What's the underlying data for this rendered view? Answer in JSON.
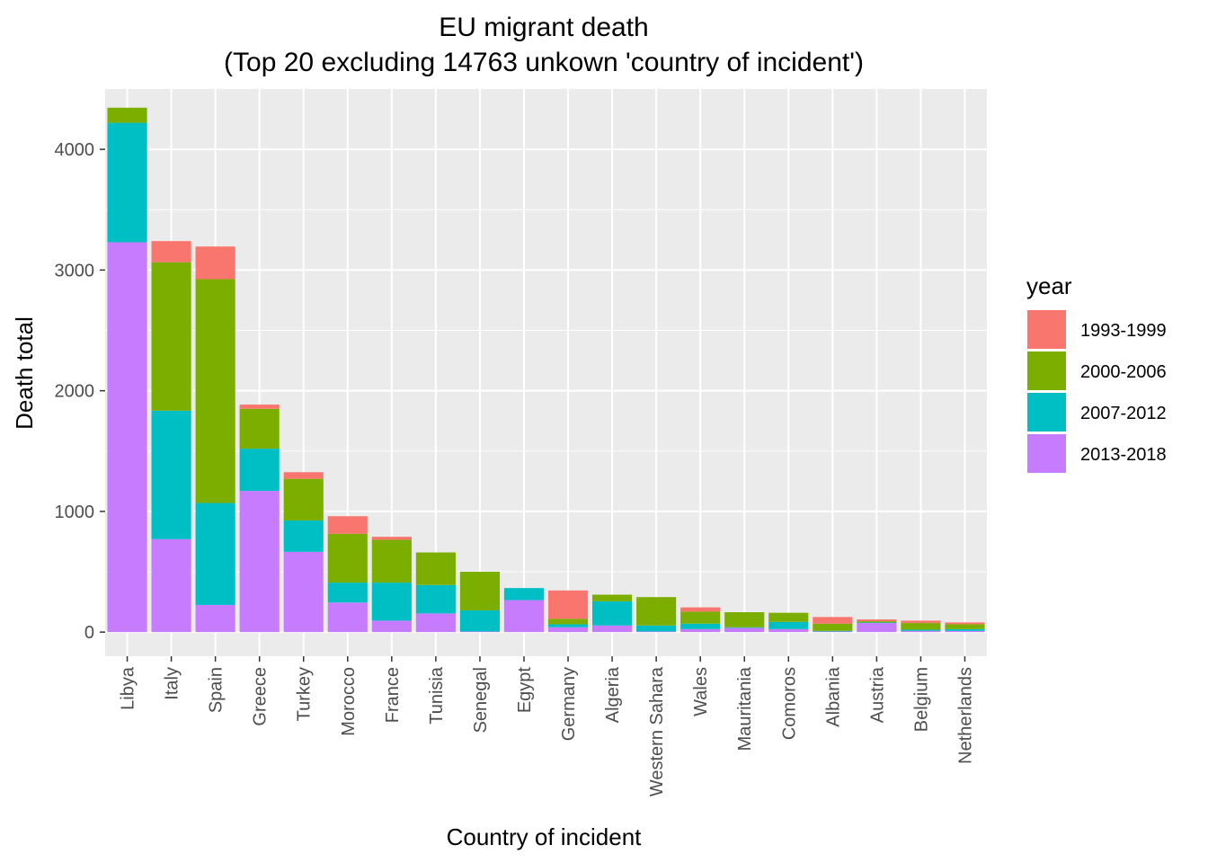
{
  "chart_data": {
    "type": "bar",
    "stacked": true,
    "title": "EU migrant death",
    "subtitle": "(Top 20 excluding 14763 unkown 'country of incident')",
    "xlabel": "Country of incident",
    "ylabel": "Death total",
    "ylim": [
      -200,
      4500
    ],
    "yticks": [
      0,
      1000,
      2000,
      3000,
      4000
    ],
    "grid": true,
    "legend": {
      "title": "year",
      "position": "right"
    },
    "categories": [
      "Libya",
      "Italy",
      "Spain",
      "Greece",
      "Turkey",
      "Morocco",
      "France",
      "Tunisia",
      "Senegal",
      "Egypt",
      "Germany",
      "Algeria",
      "Western Sahara",
      "Wales",
      "Mauritania",
      "Comoros",
      "Albania",
      "Austria",
      "Belgium",
      "Netherlands"
    ],
    "series": [
      {
        "name": "2013-2018",
        "color": "#C77CFF",
        "values": [
          3230,
          770,
          225,
          1170,
          665,
          245,
          95,
          155,
          5,
          265,
          40,
          55,
          5,
          25,
          35,
          25,
          5,
          75,
          10,
          10
        ]
      },
      {
        "name": "2007-2012",
        "color": "#00BFC4",
        "values": [
          990,
          1065,
          845,
          350,
          260,
          165,
          315,
          235,
          175,
          100,
          25,
          200,
          50,
          45,
          5,
          60,
          5,
          5,
          10,
          15
        ]
      },
      {
        "name": "2000-2006",
        "color": "#7CAE00",
        "values": [
          125,
          1230,
          1855,
          330,
          345,
          405,
          355,
          270,
          320,
          0,
          45,
          55,
          235,
          100,
          125,
          75,
          60,
          10,
          55,
          40
        ]
      },
      {
        "name": "1993-1999",
        "color": "#F8766D",
        "values": [
          0,
          175,
          270,
          35,
          55,
          145,
          25,
          0,
          0,
          0,
          235,
          0,
          0,
          35,
          0,
          0,
          55,
          15,
          20,
          15
        ]
      }
    ],
    "legend_order": [
      "1993-1999",
      "2000-2006",
      "2007-2012",
      "2013-2018"
    ]
  }
}
